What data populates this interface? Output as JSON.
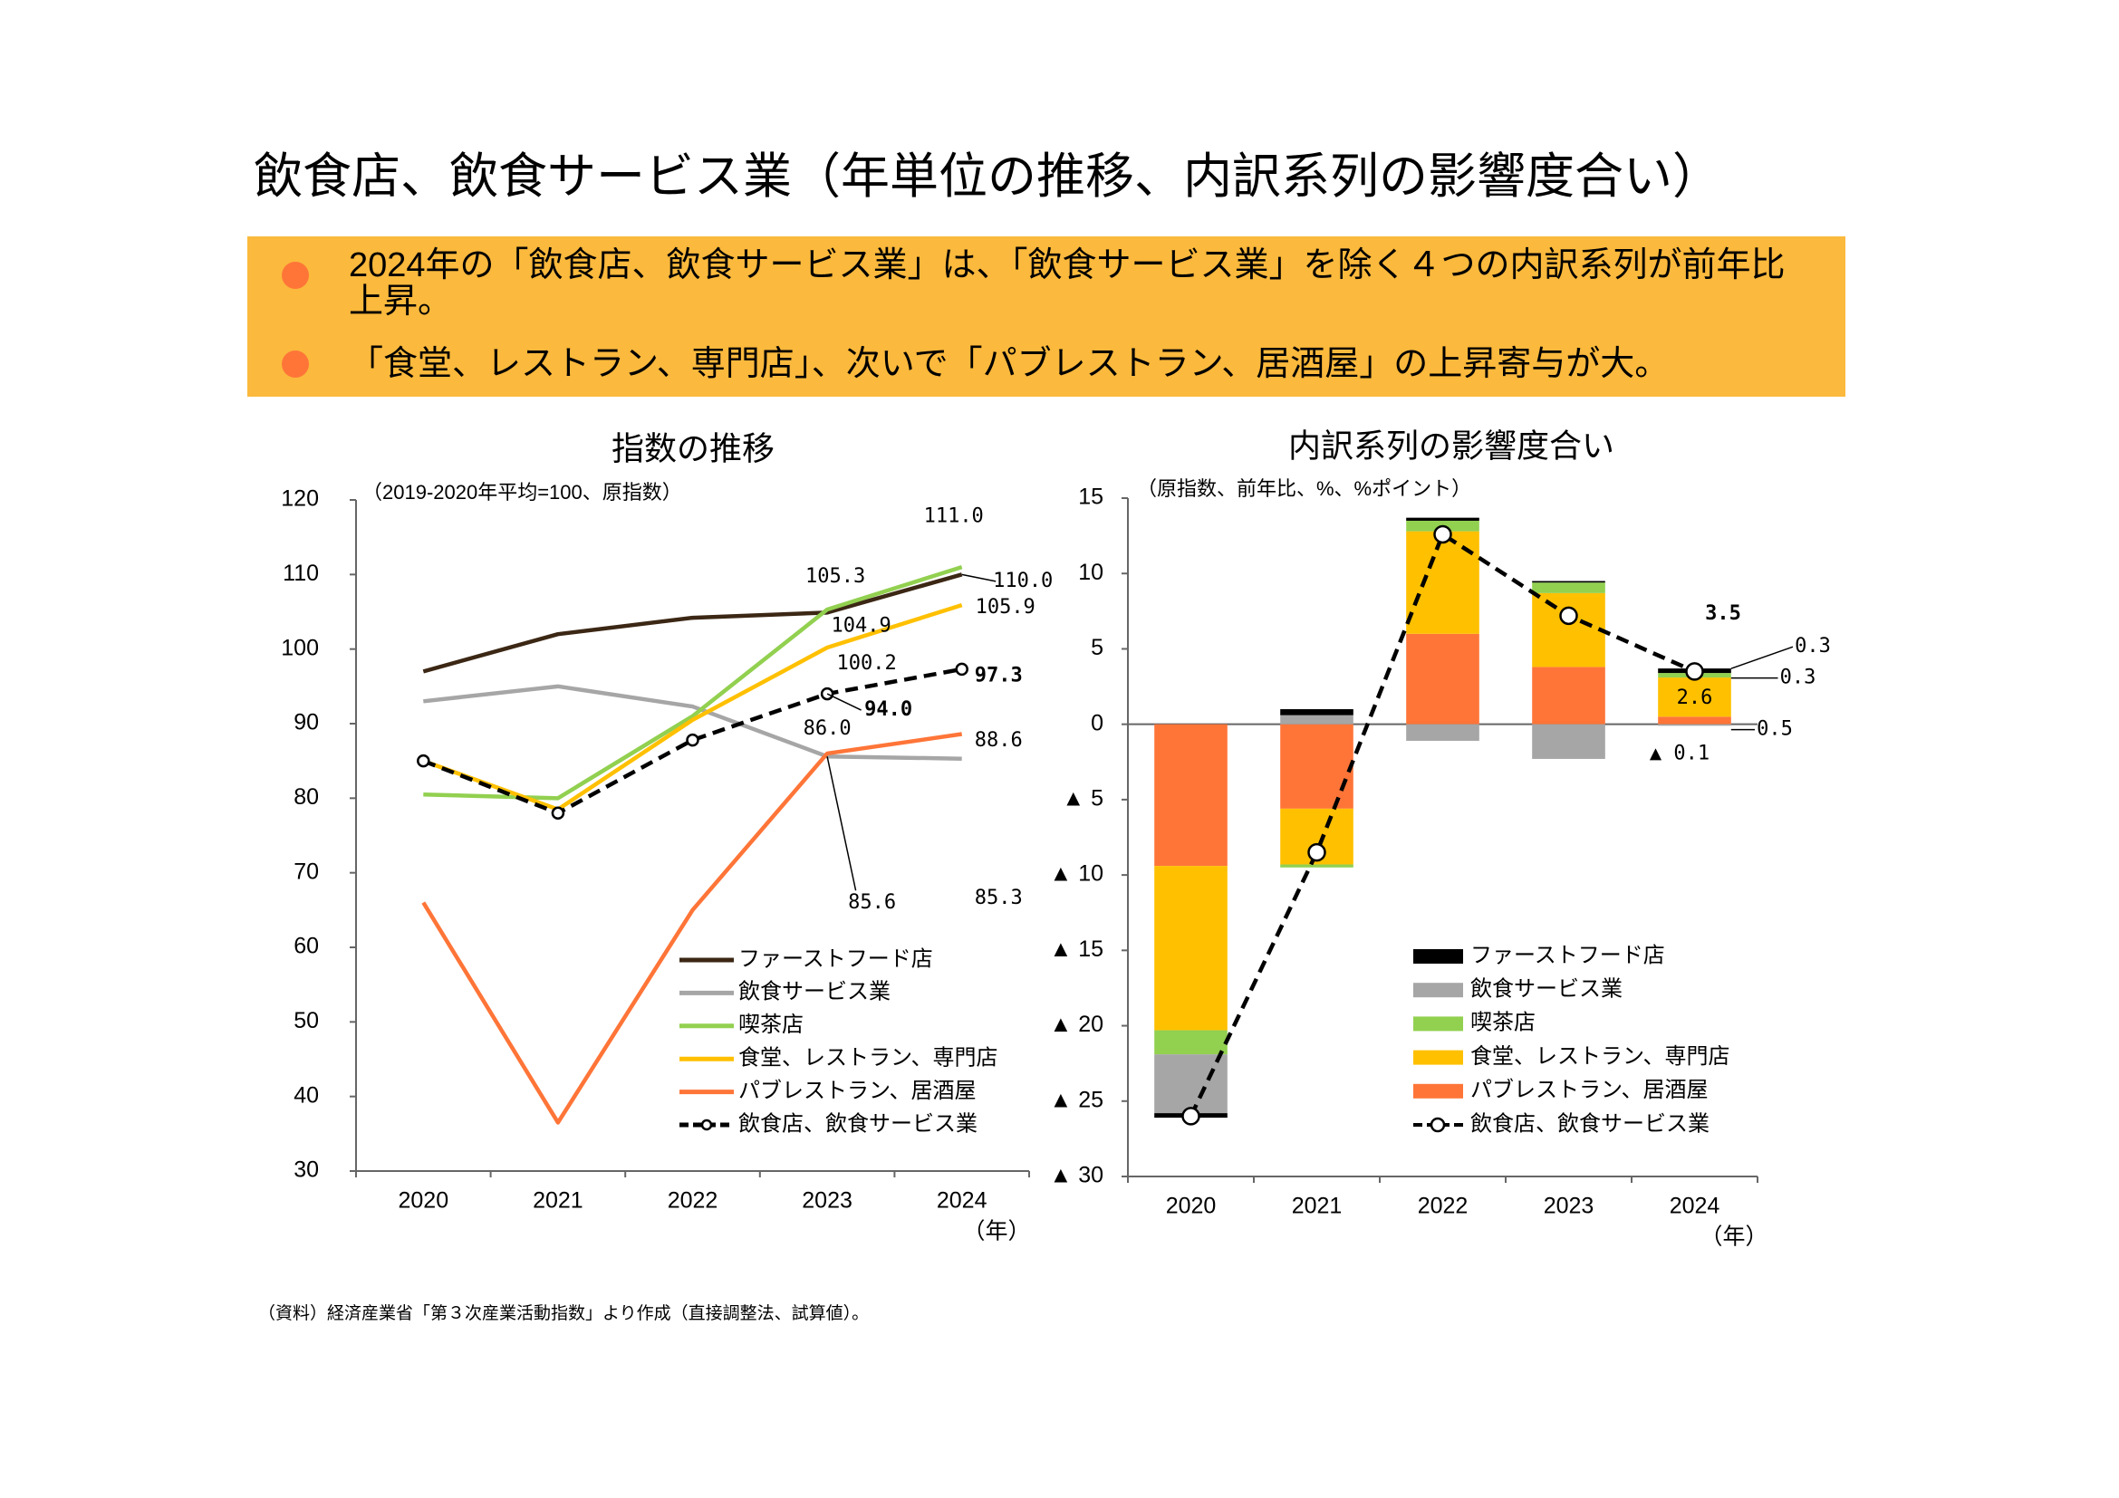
{
  "title": "飲食店、飲食サービス業（年単位の推移、内訳系列の影響度合い）",
  "bullets": [
    "2024年の「飲食店、飲食サービス業」は、「飲食サービス業」を除く４つの内訳系列が前年比上昇。",
    "「食堂、レストラン、専門店」、次いで「パブレストラン、居酒屋」の上昇寄与が大。"
  ],
  "footnote": "（資料）経済産業省「第３次産業活動指数」より作成（直接調整法、試算値）。",
  "chart_data": [
    {
      "type": "line",
      "title": "指数の推移",
      "subtitle": "（2019-2020年平均=100、原指数）",
      "x_unit": "（年）",
      "categories": [
        "2020",
        "2021",
        "2022",
        "2023",
        "2024"
      ],
      "ylim": [
        30,
        120
      ],
      "yticks": [
        30,
        40,
        50,
        60,
        70,
        80,
        90,
        100,
        110,
        120
      ],
      "series": [
        {
          "name": "ファーストフード店",
          "color": "#3b2714",
          "values": [
            97,
            102,
            104.2,
            104.9,
            110.0
          ],
          "value_labels": [
            null,
            null,
            null,
            "104.9",
            "110.0"
          ]
        },
        {
          "name": "飲食サービス業",
          "color": "#a6a6a6",
          "values": [
            93,
            95,
            92.3,
            85.6,
            85.3
          ],
          "value_labels": [
            null,
            null,
            null,
            "85.6",
            "85.3"
          ]
        },
        {
          "name": "喫茶店",
          "color": "#92d050",
          "values": [
            80.5,
            80,
            91,
            105.3,
            111.0
          ],
          "value_labels": [
            null,
            null,
            null,
            "105.3",
            "111.0"
          ]
        },
        {
          "name": "食堂、レストラン、専門店",
          "color": "#ffc000",
          "values": [
            85,
            78.5,
            90.5,
            100.2,
            105.9
          ],
          "value_labels": [
            null,
            null,
            null,
            "100.2",
            "105.9"
          ]
        },
        {
          "name": "パブレストラン、居酒屋",
          "color": "#ff7538",
          "values": [
            66,
            36.5,
            65,
            86.0,
            88.6
          ],
          "value_labels": [
            null,
            null,
            null,
            "86.0",
            "88.6"
          ]
        },
        {
          "name": "飲食店、飲食サービス業",
          "color": "#000000",
          "style": "dashed",
          "marker": "circle",
          "values": [
            85,
            78,
            87.8,
            94.0,
            97.3
          ],
          "value_labels": [
            null,
            null,
            null,
            "94.0",
            "97.3"
          ]
        }
      ]
    },
    {
      "type": "stacked_bar",
      "title": "内訳系列の影響度合い",
      "subtitle": "（原指数、前年比、%、%ポイント）",
      "x_unit": "（年）",
      "categories": [
        "2020",
        "2021",
        "2022",
        "2023",
        "2024"
      ],
      "ylim": [
        -30,
        15
      ],
      "yticks": [
        {
          "value": -30,
          "label": "▲ 30"
        },
        {
          "value": -25,
          "label": "▲ 25"
        },
        {
          "value": -20,
          "label": "▲ 20"
        },
        {
          "value": -15,
          "label": "▲ 15"
        },
        {
          "value": -10,
          "label": "▲ 10"
        },
        {
          "value": -5,
          "label": "▲ 5"
        },
        0,
        5,
        10,
        15
      ],
      "series": [
        {
          "name": "ファーストフード店",
          "color": "#000000",
          "values": [
            -0.3,
            0.4,
            0.2,
            0.1,
            0.3
          ],
          "value_labels": [
            null,
            null,
            null,
            null,
            "0.3"
          ]
        },
        {
          "name": "飲食サービス業",
          "color": "#a6a6a6",
          "values": [
            -3.9,
            0.6,
            -1.1,
            -2.3,
            -0.1
          ],
          "value_labels": [
            null,
            null,
            null,
            null,
            "▲ 0.1"
          ]
        },
        {
          "name": "喫茶店",
          "color": "#92d050",
          "values": [
            -1.6,
            -0.2,
            0.7,
            0.7,
            0.3
          ],
          "value_labels": [
            null,
            null,
            null,
            null,
            "0.3"
          ]
        },
        {
          "name": "食堂、レストラン、専門店",
          "color": "#ffc000",
          "values": [
            -10.9,
            -3.7,
            6.8,
            4.9,
            2.6
          ],
          "value_labels": [
            null,
            null,
            null,
            null,
            "2.6"
          ]
        },
        {
          "name": "パブレストラン、居酒屋",
          "color": "#ff7538",
          "values": [
            -9.4,
            -5.6,
            6.0,
            3.8,
            0.5
          ],
          "value_labels": [
            null,
            null,
            null,
            null,
            "0.5"
          ]
        },
        {
          "name": "飲食店、飲食サービス業",
          "type": "line",
          "color": "#000000",
          "style": "dashed",
          "marker": "circle",
          "values": [
            -26.0,
            -8.5,
            12.6,
            7.2,
            3.5
          ],
          "value_labels": [
            null,
            null,
            null,
            null,
            "3.5"
          ]
        }
      ]
    }
  ]
}
